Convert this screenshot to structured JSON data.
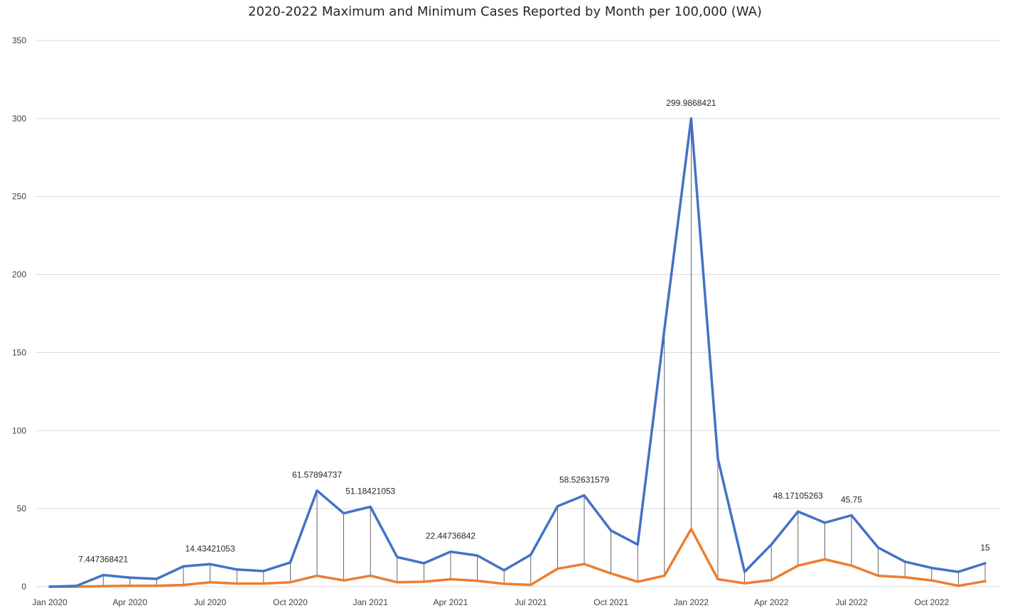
{
  "chart_data": {
    "type": "line",
    "title": "2020-2022 Maximum and Minimum Cases Reported by Month per 100,000 (WA)",
    "xlabel": "",
    "ylabel": "",
    "ylim": [
      0,
      350
    ],
    "yticks": [
      0,
      50,
      100,
      150,
      200,
      250,
      300,
      350
    ],
    "grid": true,
    "high_low_lines": true,
    "x": [
      "Jan 2020",
      "Feb 2020",
      "Mar 2020",
      "Apr 2020",
      "May 2020",
      "Jun 2020",
      "Jul 2020",
      "Aug 2020",
      "Sep 2020",
      "Oct 2020",
      "Nov 2020",
      "Dec 2020",
      "Jan 2021",
      "Feb 2021",
      "Mar 2021",
      "Apr 2021",
      "May 2021",
      "Jun 2021",
      "Jul 2021",
      "Aug 2021",
      "Sep 2021",
      "Oct 2021",
      "Nov 2021",
      "Dec 2021",
      "Jan 2022",
      "Feb 2022",
      "Mar 2022",
      "Apr 2022",
      "May 2022",
      "Jun 2022",
      "Jul 2022",
      "Aug 2022",
      "Sep 2022",
      "Oct 2022",
      "Nov 2022",
      "Dec 2022"
    ],
    "xtick_labels": [
      {
        "index": 0,
        "label": "Jan 2020"
      },
      {
        "index": 3,
        "label": "Apr 2020"
      },
      {
        "index": 6,
        "label": "Jul 2020"
      },
      {
        "index": 9,
        "label": "Oct 2020"
      },
      {
        "index": 12,
        "label": "Jan 2021"
      },
      {
        "index": 15,
        "label": "Apr 2021"
      },
      {
        "index": 18,
        "label": "Jul 2021"
      },
      {
        "index": 21,
        "label": "Oct 2021"
      },
      {
        "index": 24,
        "label": "Jan 2022"
      },
      {
        "index": 27,
        "label": "Apr 2022"
      },
      {
        "index": 30,
        "label": "Jul 2022"
      },
      {
        "index": 33,
        "label": "Oct 2022"
      }
    ],
    "series": [
      {
        "color": "#4472C4",
        "values": [
          0,
          0.5,
          7.447368421,
          5.8,
          5,
          13,
          14.43421053,
          11,
          10,
          15.5,
          61.57894737,
          47,
          51.18421053,
          19,
          15,
          22.44736842,
          20,
          10.5,
          20.5,
          51.5,
          58.52631579,
          36,
          27,
          165,
          299.9868421,
          82,
          9.5,
          27,
          48.17105263,
          41,
          45.75,
          25,
          16,
          12,
          9.5,
          15
        ]
      },
      {
        "color": "#ED7D31",
        "values": [
          0,
          0,
          0.3,
          0.6,
          0.6,
          1.1,
          2.8,
          2,
          2,
          2.8,
          7,
          4,
          7,
          2.8,
          3.2,
          4.8,
          3.8,
          1.8,
          1.2,
          11.5,
          14.5,
          8.5,
          3.2,
          7,
          37,
          4.8,
          2.2,
          4.2,
          13.5,
          17.5,
          13.5,
          7,
          6,
          4,
          0.6,
          3.5
        ]
      }
    ],
    "data_labels": [
      {
        "index": 2,
        "text": "7.447368421"
      },
      {
        "index": 6,
        "text": "14.43421053"
      },
      {
        "index": 10,
        "text": "61.57894737"
      },
      {
        "index": 12,
        "text": "51.18421053"
      },
      {
        "index": 15,
        "text": "22.44736842"
      },
      {
        "index": 20,
        "text": "58.52631579"
      },
      {
        "index": 24,
        "text": "299.9868421"
      },
      {
        "index": 28,
        "text": "48.17105263"
      },
      {
        "index": 30,
        "text": "45.75"
      },
      {
        "index": 35,
        "text": "15"
      }
    ]
  }
}
